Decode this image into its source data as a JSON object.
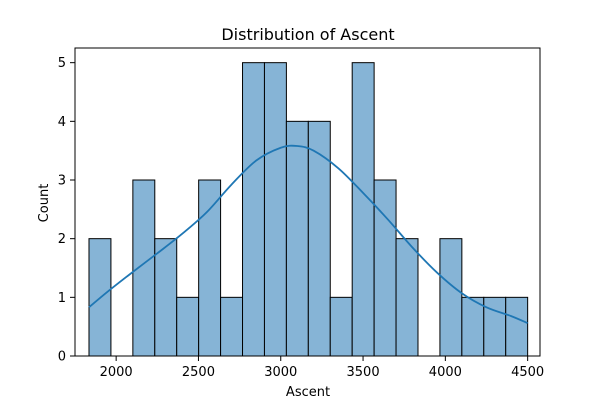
{
  "chart_data": {
    "type": "bar",
    "subtype": "histogram-with-kde",
    "title": "Distribution of Ascent",
    "xlabel": "Ascent",
    "ylabel": "Count",
    "xlim": [
      1750,
      4575
    ],
    "ylim": [
      0,
      5.25
    ],
    "xticks": [
      2000,
      2500,
      3000,
      3500,
      4000,
      4500
    ],
    "yticks": [
      0,
      1,
      2,
      3,
      4,
      5
    ],
    "bin_start": 1835,
    "bin_width": 133.25,
    "counts": [
      2,
      0,
      3,
      2,
      1,
      3,
      1,
      5,
      5,
      4,
      4,
      1,
      5,
      3,
      2,
      0,
      2,
      1,
      1,
      1
    ],
    "kde": {
      "x": [
        1835,
        1950,
        2100,
        2250,
        2400,
        2550,
        2700,
        2850,
        3000,
        3100,
        3200,
        3350,
        3500,
        3650,
        3800,
        3950,
        4100,
        4250,
        4400,
        4500
      ],
      "y": [
        0.83,
        1.1,
        1.43,
        1.75,
        2.08,
        2.45,
        2.92,
        3.33,
        3.55,
        3.58,
        3.5,
        3.2,
        2.78,
        2.33,
        1.85,
        1.42,
        1.07,
        0.83,
        0.68,
        0.56
      ]
    },
    "bar_color": "#86b4d6",
    "bar_edge_color": "#000000",
    "kde_color": "#1f77b4",
    "grid": false,
    "legend": "none"
  }
}
